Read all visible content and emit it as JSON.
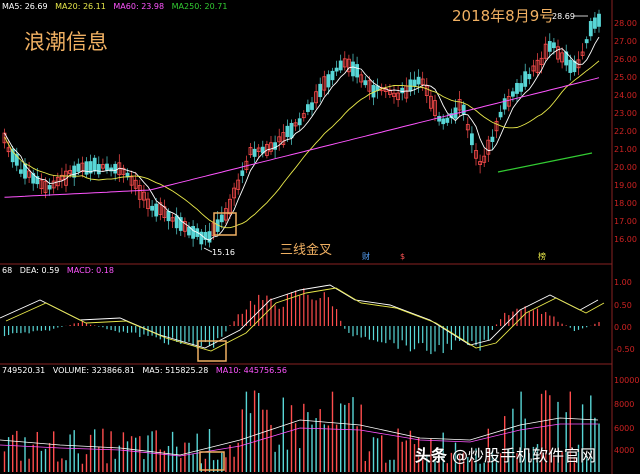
{
  "colors": {
    "bg": "#000000",
    "up": "#ff4d4d",
    "down": "#58d6d6",
    "ma5": "#ffffff",
    "ma20": "#e8e84a",
    "ma60": "#ff55ff",
    "ma250": "#33cc33",
    "axis": "#cc2222",
    "box": "#f0b062",
    "annot": "#f0b062"
  },
  "header": {
    "ma5": "MA5: 26.69",
    "ma20": "MA20: 26.11",
    "ma60": "MA60: 23.98",
    "ma250": "MA250: 20.71"
  },
  "annotations": {
    "stock_name": "浪潮信息",
    "date": "2018年8月9号",
    "cross_label": "三线金叉",
    "low_label": "15.16",
    "high_label": "28.69",
    "event_marks": [
      "财",
      "$",
      "榜"
    ]
  },
  "price_axis": [
    "28.00",
    "27.00",
    "26.00",
    "25.00",
    "24.00",
    "23.00",
    "22.00",
    "21.00",
    "20.00",
    "19.00",
    "18.00",
    "17.00",
    "16.00"
  ],
  "macd": {
    "header_dif": "68",
    "header_dea": "DEA: 0.59",
    "header_macd": "MACD: 0.18",
    "axis": [
      "1.00",
      "0.50",
      "0.00",
      "-0.50"
    ]
  },
  "volume": {
    "header_total": "749520.31",
    "header_volume": "VOLUME: 323866.81",
    "header_ma5": "MA5: 515825.28",
    "header_ma10": "MA10: 445756.56",
    "axis": [
      "10000",
      "8000",
      "6000",
      "4000"
    ]
  },
  "watermark": {
    "prefix": "头条",
    "text": "@炒股手机软件官网"
  }
}
